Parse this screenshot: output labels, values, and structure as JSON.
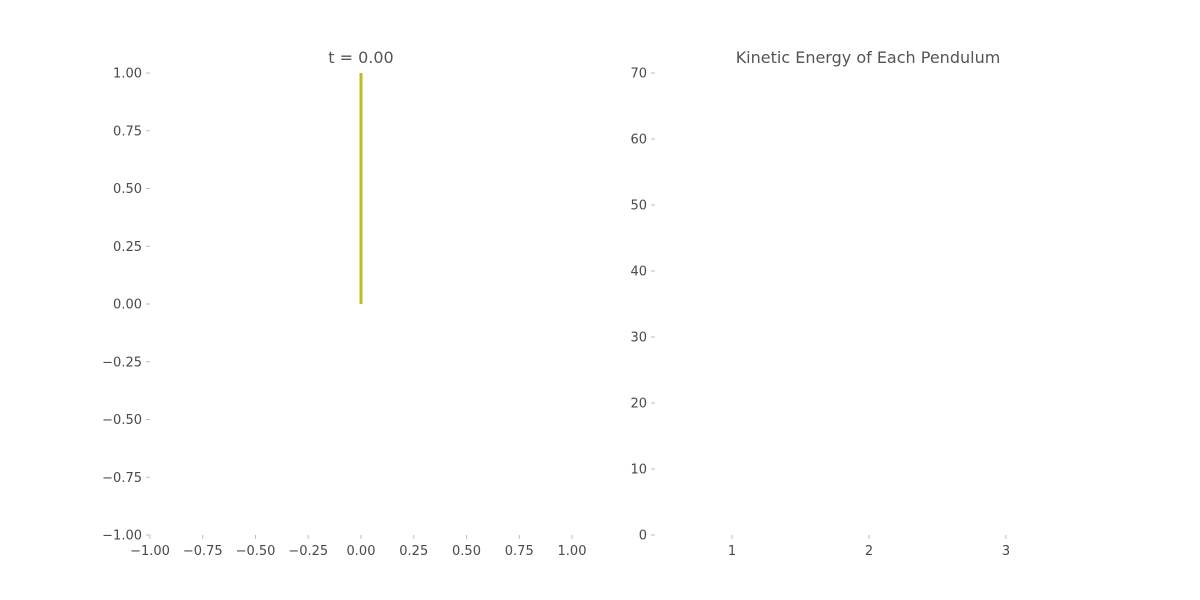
{
  "chart_data": [
    {
      "type": "line",
      "title": "t = 0.00",
      "xlabel": "",
      "ylabel": "",
      "xlim": [
        -1.0,
        1.0
      ],
      "ylim": [
        -1.0,
        1.0
      ],
      "x_ticks": [
        "−1.00",
        "−0.75",
        "−0.50",
        "−0.25",
        "0.00",
        "0.25",
        "0.50",
        "0.75",
        "1.00"
      ],
      "y_ticks": [
        "−1.00",
        "−0.75",
        "−0.50",
        "−0.25",
        "0.00",
        "0.25",
        "0.50",
        "0.75",
        "1.00"
      ],
      "grid": false,
      "series": [
        {
          "x": [
            0.0,
            0.0
          ],
          "y": [
            0.0,
            1.0
          ],
          "color": "#bcbd22"
        }
      ]
    },
    {
      "type": "bar",
      "title": "Kinetic Energy of Each Pendulum",
      "xlabel": "",
      "ylabel": "",
      "categories": [
        "1",
        "2",
        "3"
      ],
      "values": [
        0,
        0,
        0
      ],
      "ylim": [
        0,
        70
      ],
      "y_ticks": [
        "0",
        "10",
        "20",
        "30",
        "40",
        "50",
        "60",
        "70"
      ],
      "grid": false
    }
  ]
}
